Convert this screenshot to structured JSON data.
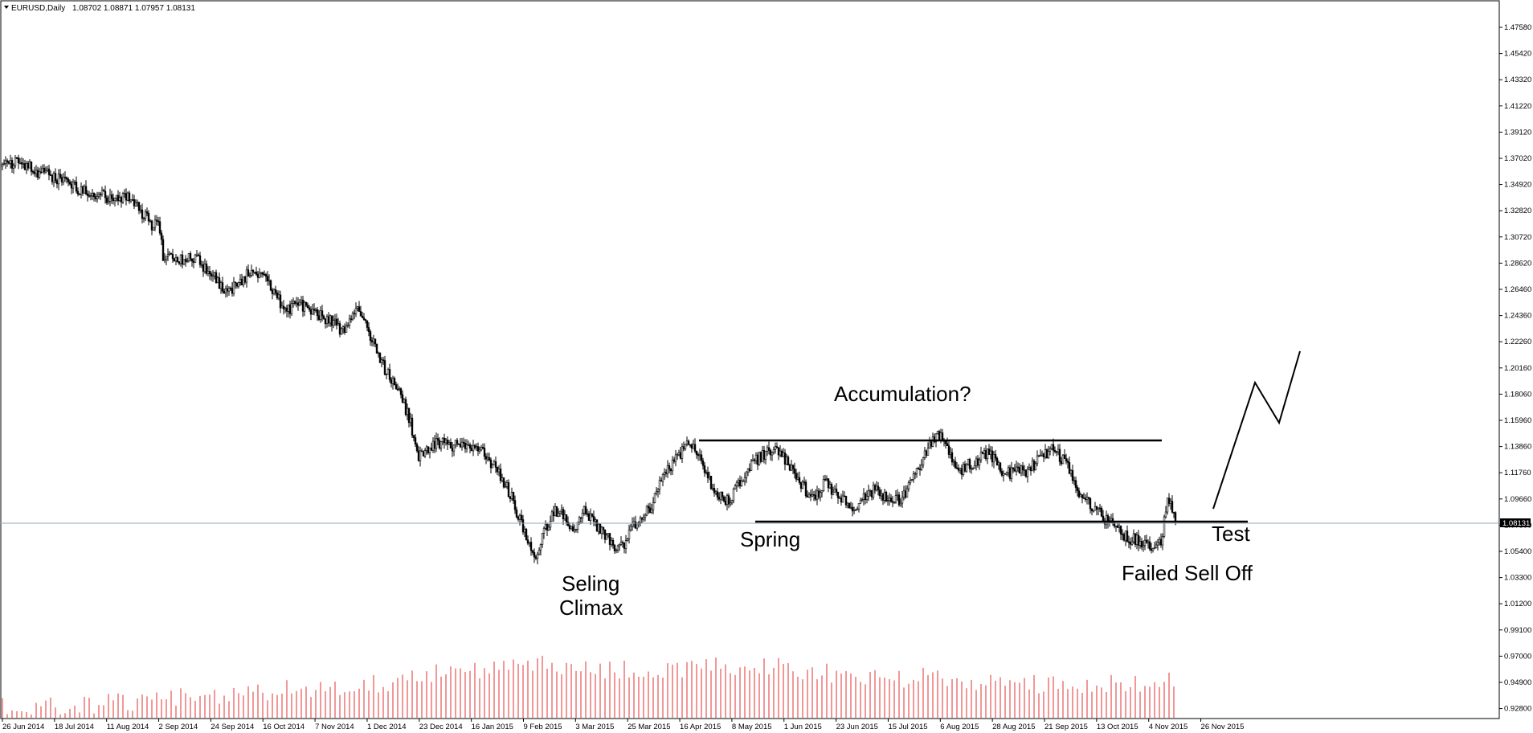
{
  "header": {
    "symbol": "EURUSD,Daily",
    "ohlc": "1.08702 1.08871 1.07957 1.08131"
  },
  "current_price_label": "1.08131",
  "colors": {
    "background": "#ffffff",
    "candle": "#000000",
    "volume": "#e03030",
    "bid_line": "#8ea6b8",
    "axis": "#000000"
  },
  "annotations": {
    "accumulation": "Accumulation?",
    "spring": "Spring",
    "selling_line1": "Seling",
    "selling_line2": "Climax",
    "test": "Test",
    "failed": "Failed Sell Off"
  },
  "chart_data": {
    "type": "candlestick",
    "symbol": "EURUSD",
    "timeframe": "Daily",
    "y_ticks": [
      "1.47580",
      "1.45420",
      "1.43320",
      "1.41220",
      "1.39120",
      "1.37020",
      "1.34920",
      "1.32820",
      "1.30720",
      "1.28620",
      "1.26460",
      "1.24360",
      "1.22260",
      "1.20160",
      "1.18060",
      "1.15960",
      "1.13860",
      "1.11760",
      "1.09660",
      "1.07500",
      "1.05400",
      "1.03300",
      "1.01200",
      "0.99100",
      "0.97000",
      "0.94900",
      "0.92800"
    ],
    "x_ticks": [
      "26 Jun 2014",
      "18 Jul 2014",
      "11 Aug 2014",
      "2 Sep 2014",
      "24 Sep 2014",
      "16 Oct 2014",
      "7 Nov 2014",
      "1 Dec 2014",
      "23 Dec 2014",
      "16 Jan 2015",
      "9 Feb 2015",
      "3 Mar 2015",
      "25 Mar 2015",
      "16 Apr 2015",
      "8 May 2015",
      "1 Jun 2015",
      "23 Jun 2015",
      "15 Jul 2015",
      "6 Aug 2015",
      "28 Aug 2015",
      "21 Sep 2015",
      "13 Oct 2015",
      "4 Nov 2015",
      "26 Nov 2015"
    ],
    "price_path": [
      [
        0,
        1.364
      ],
      [
        10,
        1.368
      ],
      [
        20,
        1.361
      ],
      [
        30,
        1.356
      ],
      [
        40,
        1.353
      ],
      [
        50,
        1.344
      ],
      [
        60,
        1.341
      ],
      [
        70,
        1.338
      ],
      [
        78,
        1.34
      ],
      [
        84,
        1.332
      ],
      [
        92,
        1.318
      ],
      [
        98,
        1.314
      ],
      [
        100,
        1.293
      ],
      [
        110,
        1.289
      ],
      [
        118,
        1.292
      ],
      [
        126,
        1.283
      ],
      [
        132,
        1.274
      ],
      [
        140,
        1.262
      ],
      [
        146,
        1.271
      ],
      [
        152,
        1.276
      ],
      [
        158,
        1.279
      ],
      [
        164,
        1.272
      ],
      [
        170,
        1.261
      ],
      [
        176,
        1.247
      ],
      [
        184,
        1.253
      ],
      [
        192,
        1.248
      ],
      [
        198,
        1.244
      ],
      [
        206,
        1.238
      ],
      [
        212,
        1.232
      ],
      [
        218,
        1.246
      ],
      [
        222,
        1.252
      ],
      [
        226,
        1.236
      ],
      [
        232,
        1.221
      ],
      [
        238,
        1.201
      ],
      [
        244,
        1.188
      ],
      [
        250,
        1.173
      ],
      [
        254,
        1.157
      ],
      [
        258,
        1.131
      ],
      [
        264,
        1.136
      ],
      [
        272,
        1.142
      ],
      [
        280,
        1.138
      ],
      [
        286,
        1.142
      ],
      [
        292,
        1.14
      ],
      [
        300,
        1.132
      ],
      [
        308,
        1.119
      ],
      [
        316,
        1.101
      ],
      [
        322,
        1.079
      ],
      [
        328,
        1.058
      ],
      [
        332,
        1.048
      ],
      [
        338,
        1.073
      ],
      [
        344,
        1.088
      ],
      [
        350,
        1.082
      ],
      [
        356,
        1.068
      ],
      [
        362,
        1.086
      ],
      [
        368,
        1.078
      ],
      [
        374,
        1.069
      ],
      [
        380,
        1.06
      ],
      [
        386,
        1.058
      ],
      [
        392,
        1.072
      ],
      [
        398,
        1.081
      ],
      [
        404,
        1.091
      ],
      [
        410,
        1.112
      ],
      [
        416,
        1.124
      ],
      [
        422,
        1.132
      ],
      [
        428,
        1.142
      ],
      [
        434,
        1.128
      ],
      [
        440,
        1.112
      ],
      [
        446,
        1.098
      ],
      [
        452,
        1.094
      ],
      [
        458,
        1.108
      ],
      [
        464,
        1.122
      ],
      [
        470,
        1.129
      ],
      [
        476,
        1.133
      ],
      [
        482,
        1.136
      ],
      [
        488,
        1.126
      ],
      [
        494,
        1.116
      ],
      [
        500,
        1.104
      ],
      [
        506,
        1.096
      ],
      [
        512,
        1.11
      ],
      [
        518,
        1.101
      ],
      [
        524,
        1.094
      ],
      [
        530,
        1.088
      ],
      [
        536,
        1.098
      ],
      [
        542,
        1.104
      ],
      [
        548,
        1.1
      ],
      [
        554,
        1.094
      ],
      [
        560,
        1.098
      ],
      [
        566,
        1.112
      ],
      [
        572,
        1.126
      ],
      [
        578,
        1.142
      ],
      [
        584,
        1.148
      ],
      [
        588,
        1.136
      ],
      [
        594,
        1.118
      ],
      [
        600,
        1.124
      ],
      [
        606,
        1.126
      ],
      [
        612,
        1.133
      ],
      [
        618,
        1.128
      ],
      [
        624,
        1.116
      ],
      [
        630,
        1.12
      ],
      [
        636,
        1.118
      ],
      [
        642,
        1.124
      ],
      [
        648,
        1.132
      ],
      [
        654,
        1.136
      ],
      [
        660,
        1.128
      ],
      [
        665,
        1.118
      ],
      [
        670,
        1.101
      ],
      [
        676,
        1.094
      ],
      [
        682,
        1.086
      ],
      [
        688,
        1.078
      ],
      [
        694,
        1.073
      ],
      [
        700,
        1.066
      ],
      [
        706,
        1.063
      ],
      [
        712,
        1.061
      ],
      [
        717,
        1.057
      ],
      [
        721,
        1.062
      ],
      [
        725,
        1.094
      ],
      [
        728,
        1.088
      ],
      [
        730,
        1.081
      ]
    ],
    "volume_path": [
      [
        0,
        0.12
      ],
      [
        40,
        0.15
      ],
      [
        80,
        0.2
      ],
      [
        120,
        0.28
      ],
      [
        160,
        0.33
      ],
      [
        200,
        0.38
      ],
      [
        240,
        0.45
      ],
      [
        260,
        0.55
      ],
      [
        300,
        0.6
      ],
      [
        340,
        0.68
      ],
      [
        380,
        0.6
      ],
      [
        420,
        0.62
      ],
      [
        460,
        0.66
      ],
      [
        500,
        0.6
      ],
      [
        540,
        0.48
      ],
      [
        580,
        0.5
      ],
      [
        620,
        0.44
      ],
      [
        660,
        0.4
      ],
      [
        700,
        0.42
      ],
      [
        724,
        0.45
      ]
    ],
    "price_range": [
      0.9199,
      1.4901
    ],
    "annotation_lines": {
      "resistance": 1.148,
      "support": 1.085,
      "support_extended": 1.084,
      "projection": [
        1.081,
        1.18,
        1.162,
        1.22
      ]
    }
  }
}
